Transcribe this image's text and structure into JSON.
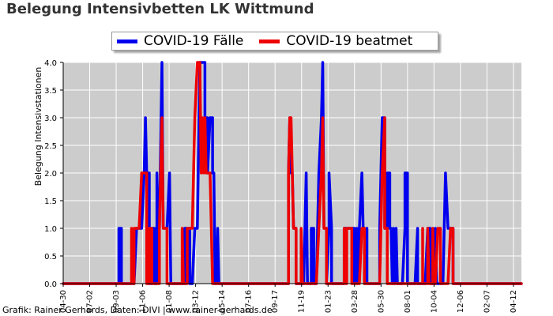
{
  "title": "Belegung Intensivbetten LK Wittmund",
  "credit": "Grafik: Rainer Gerhards, Daten: DIVI | www.rainer-gerhards.de",
  "chart_data": {
    "type": "line",
    "ylabel": "Belegung Intensivstationen",
    "xlabel": "",
    "ylim": [
      0,
      4
    ],
    "yticks": [
      "0.0",
      "0.5",
      "1.0",
      "1.5",
      "2.0",
      "2.5",
      "3.0",
      "3.5",
      "4.0"
    ],
    "xticks": [
      "04-30",
      "07-02",
      "09-03",
      "11-06",
      "01-08",
      "03-12",
      "05-14",
      "07-16",
      "09-17",
      "11-19",
      "01-23",
      "03-28",
      "05-30",
      "08-01",
      "10-04",
      "12-06",
      "02-07",
      "04-12"
    ],
    "x_count": 181,
    "grid": true,
    "legend_position": "top",
    "background": "#cccccc",
    "series": [
      {
        "name": "COVID-19 Fälle",
        "color": "#0000ee",
        "points": [
          [
            0,
            0
          ],
          [
            22,
            0
          ],
          [
            22,
            1
          ],
          [
            23,
            1
          ],
          [
            23,
            0
          ],
          [
            28,
            0
          ],
          [
            29,
            1
          ],
          [
            31,
            1
          ],
          [
            32,
            2
          ],
          [
            32.5,
            3
          ],
          [
            33,
            2
          ],
          [
            34,
            2
          ],
          [
            34,
            0
          ],
          [
            35,
            0
          ],
          [
            35,
            1
          ],
          [
            36,
            1
          ],
          [
            36,
            0
          ],
          [
            37,
            0
          ],
          [
            37,
            2
          ],
          [
            37.5,
            1
          ],
          [
            38,
            1
          ],
          [
            39,
            4
          ],
          [
            39.5,
            1
          ],
          [
            40,
            1
          ],
          [
            41,
            1
          ],
          [
            42,
            2
          ],
          [
            42.5,
            0
          ],
          [
            48,
            0
          ],
          [
            48,
            1
          ],
          [
            50,
            1
          ],
          [
            50,
            0
          ],
          [
            51,
            0
          ],
          [
            52,
            1
          ],
          [
            53,
            1
          ],
          [
            54,
            4
          ],
          [
            56,
            4
          ],
          [
            56,
            3
          ],
          [
            57,
            3
          ],
          [
            57,
            2
          ],
          [
            58,
            3
          ],
          [
            59,
            3
          ],
          [
            59,
            2
          ],
          [
            59.5,
            2
          ],
          [
            60,
            0
          ],
          [
            60.5,
            0
          ],
          [
            61,
            1
          ],
          [
            61.5,
            0
          ],
          [
            89,
            0
          ],
          [
            89,
            2
          ],
          [
            89.5,
            3
          ],
          [
            90,
            2
          ],
          [
            90.5,
            2
          ],
          [
            91,
            1
          ],
          [
            92,
            1
          ],
          [
            92,
            0
          ],
          [
            95,
            0
          ],
          [
            96,
            2
          ],
          [
            96.5,
            0
          ],
          [
            98,
            0
          ],
          [
            98,
            1
          ],
          [
            99,
            1
          ],
          [
            99,
            0
          ],
          [
            100,
            0
          ],
          [
            101,
            2
          ],
          [
            102,
            3
          ],
          [
            102.5,
            4
          ],
          [
            103,
            1
          ],
          [
            104,
            1
          ],
          [
            104,
            0
          ],
          [
            105,
            1
          ],
          [
            105,
            2
          ],
          [
            106,
            1
          ],
          [
            106,
            0
          ],
          [
            111,
            0
          ],
          [
            111,
            1
          ],
          [
            115,
            1
          ],
          [
            115,
            0
          ],
          [
            116,
            1
          ],
          [
            116,
            0
          ],
          [
            117,
            1
          ],
          [
            118,
            2
          ],
          [
            118.5,
            1
          ],
          [
            119,
            1
          ],
          [
            119,
            0
          ],
          [
            120,
            1
          ],
          [
            120,
            0
          ],
          [
            125,
            0
          ],
          [
            125,
            1
          ],
          [
            126,
            3
          ],
          [
            127,
            3
          ],
          [
            127,
            1
          ],
          [
            128,
            1
          ],
          [
            128,
            2
          ],
          [
            129,
            2
          ],
          [
            129,
            1
          ],
          [
            129.5,
            1
          ],
          [
            130,
            0
          ],
          [
            130.5,
            1
          ],
          [
            131,
            0
          ],
          [
            131.5,
            1
          ],
          [
            132,
            0
          ],
          [
            134,
            0
          ],
          [
            135,
            1
          ],
          [
            135,
            2
          ],
          [
            136,
            2
          ],
          [
            136,
            0
          ],
          [
            139,
            0
          ],
          [
            140,
            1
          ],
          [
            140,
            0
          ],
          [
            143,
            0
          ],
          [
            144,
            1
          ],
          [
            145,
            1
          ],
          [
            145,
            0
          ],
          [
            147,
            0
          ],
          [
            147,
            1
          ],
          [
            147.5,
            0
          ],
          [
            150,
            0
          ],
          [
            151,
            2
          ],
          [
            152,
            1
          ],
          [
            154,
            1
          ],
          [
            154,
            0
          ],
          [
            181,
            0
          ]
        ]
      },
      {
        "name": "COVID-19 beatmet",
        "color": "#ee0000",
        "points": [
          [
            0,
            0
          ],
          [
            27,
            0
          ],
          [
            27,
            1
          ],
          [
            27.5,
            0
          ],
          [
            28,
            0
          ],
          [
            28,
            1
          ],
          [
            29,
            1
          ],
          [
            30,
            1
          ],
          [
            31,
            2
          ],
          [
            33,
            2
          ],
          [
            33,
            0
          ],
          [
            34,
            0
          ],
          [
            34,
            1
          ],
          [
            35,
            1
          ],
          [
            35,
            0
          ],
          [
            38,
            0
          ],
          [
            38,
            1
          ],
          [
            39,
            3
          ],
          [
            39.5,
            1
          ],
          [
            40,
            1
          ],
          [
            41,
            1
          ],
          [
            41,
            0
          ],
          [
            47,
            0
          ],
          [
            47,
            1
          ],
          [
            47.5,
            0
          ],
          [
            49,
            0
          ],
          [
            49,
            1
          ],
          [
            51,
            1
          ],
          [
            52,
            3
          ],
          [
            53,
            4
          ],
          [
            54,
            4
          ],
          [
            54.5,
            2
          ],
          [
            55,
            3
          ],
          [
            55.5,
            2
          ],
          [
            56,
            3
          ],
          [
            56.5,
            2
          ],
          [
            58,
            2
          ],
          [
            59,
            0
          ],
          [
            89,
            0
          ],
          [
            89,
            2
          ],
          [
            89.5,
            3
          ],
          [
            90,
            3
          ],
          [
            91,
            1
          ],
          [
            92,
            1
          ],
          [
            92,
            0
          ],
          [
            93,
            0
          ],
          [
            94,
            0
          ],
          [
            94,
            1
          ],
          [
            94.5,
            0
          ],
          [
            100,
            0
          ],
          [
            101,
            1
          ],
          [
            102,
            2
          ],
          [
            102.5,
            3
          ],
          [
            103,
            1
          ],
          [
            104,
            1
          ],
          [
            104,
            0
          ],
          [
            111,
            0
          ],
          [
            111,
            1
          ],
          [
            111.5,
            0
          ],
          [
            112,
            0
          ],
          [
            112,
            1
          ],
          [
            114,
            1
          ],
          [
            114,
            0
          ],
          [
            117,
            0
          ],
          [
            118,
            1
          ],
          [
            119,
            1
          ],
          [
            119,
            0
          ],
          [
            125,
            0
          ],
          [
            126,
            2
          ],
          [
            127,
            3
          ],
          [
            127,
            2
          ],
          [
            127,
            1
          ],
          [
            128,
            1
          ],
          [
            128,
            0
          ],
          [
            142,
            0
          ],
          [
            142,
            1
          ],
          [
            142,
            0
          ],
          [
            144,
            0
          ],
          [
            144,
            1
          ],
          [
            144.5,
            0
          ],
          [
            146,
            0
          ],
          [
            146,
            1
          ],
          [
            146.5,
            0
          ],
          [
            147,
            0
          ],
          [
            148,
            1
          ],
          [
            149,
            1
          ],
          [
            149,
            0
          ],
          [
            152,
            0
          ],
          [
            153,
            1
          ],
          [
            154,
            1
          ],
          [
            154,
            0
          ],
          [
            181,
            0
          ]
        ]
      }
    ]
  }
}
